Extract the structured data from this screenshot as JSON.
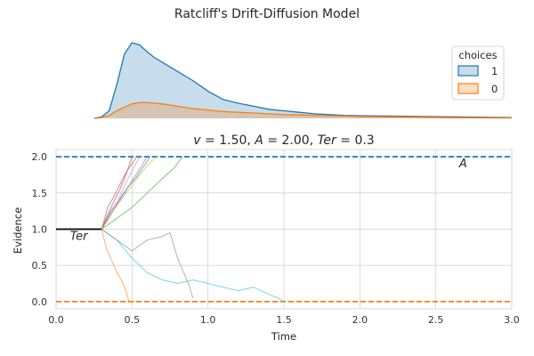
{
  "figure_title": "Ratcliff's Drift-Diffusion Model",
  "colors": {
    "choice_1": "#1f77b4",
    "choice_0": "#ff7f0e",
    "grid": "#d3d3d3",
    "threshold_line": "#000000",
    "trajectory_palette": [
      "#1f77b4",
      "#ff7f0e",
      "#2ca02c",
      "#d62728",
      "#9467bd",
      "#8c564b",
      "#e377c2",
      "#7f7f7f",
      "#bcbd22",
      "#17becf"
    ]
  },
  "chart_data": [
    {
      "type": "area",
      "subtype": "kde",
      "title": "",
      "xlim": [
        0.0,
        3.0
      ],
      "legend": {
        "title": "choices",
        "placement": "top-right",
        "entries": [
          {
            "label": "1",
            "color": "#1f77b4"
          },
          {
            "label": "0",
            "color": "#ff7f0e"
          }
        ]
      },
      "x": [
        0.25,
        0.3,
        0.35,
        0.4,
        0.45,
        0.5,
        0.55,
        0.6,
        0.65,
        0.7,
        0.8,
        0.9,
        1.0,
        1.1,
        1.2,
        1.3,
        1.4,
        1.5,
        1.6,
        1.7,
        1.8,
        1.9,
        2.0,
        2.2,
        2.4,
        2.6,
        2.8,
        3.0
      ],
      "series": [
        {
          "name": "1",
          "color": "#1f77b4",
          "values": [
            0.0,
            0.02,
            0.1,
            0.45,
            0.85,
            1.0,
            0.97,
            0.88,
            0.8,
            0.74,
            0.62,
            0.5,
            0.36,
            0.25,
            0.2,
            0.16,
            0.12,
            0.1,
            0.08,
            0.06,
            0.05,
            0.04,
            0.035,
            0.03,
            0.025,
            0.02,
            0.015,
            0.01
          ]
        },
        {
          "name": "0",
          "color": "#ff7f0e",
          "values": [
            0.0,
            0.01,
            0.04,
            0.1,
            0.15,
            0.19,
            0.21,
            0.21,
            0.2,
            0.19,
            0.16,
            0.13,
            0.11,
            0.09,
            0.08,
            0.07,
            0.06,
            0.05,
            0.045,
            0.04,
            0.035,
            0.03,
            0.025,
            0.02,
            0.015,
            0.01,
            0.008,
            0.005
          ]
        }
      ]
    },
    {
      "type": "line",
      "title": "v = 1.50, A = 2.00, Ter = 0.3",
      "title_parts": {
        "v": "v",
        "v_val": "1.50",
        "A": "A",
        "A_val": "2.00",
        "Ter": "Ter",
        "Ter_val": "0.3"
      },
      "xlabel": "Time",
      "ylabel": "Evidence",
      "xlim": [
        0.0,
        3.0
      ],
      "ylim": [
        -0.1,
        2.1
      ],
      "xticks": [
        0.0,
        0.5,
        1.0,
        1.5,
        2.0,
        2.5,
        3.0
      ],
      "xtick_labels": [
        "0.0",
        "0.5",
        "1.0",
        "1.5",
        "2.0",
        "2.5",
        "3.0"
      ],
      "yticks": [
        0.0,
        0.5,
        1.0,
        1.5,
        2.0
      ],
      "ytick_labels": [
        "0.0",
        "0.5",
        "1.0",
        "1.5",
        "2.0"
      ],
      "grid": true,
      "upper_boundary": {
        "y": 2.0,
        "label": "A",
        "style": "dashed",
        "color": "#1f77b4"
      },
      "lower_boundary": {
        "y": 0.0,
        "style": "dashed",
        "color": "#ff7f0e"
      },
      "non_decision_segment": {
        "x": [
          0.0,
          0.3
        ],
        "y": 1.0,
        "label": "Ter",
        "color": "#000000"
      },
      "trajectories": [
        {
          "color": "#1f77b4",
          "x": [
            0.3,
            0.36,
            0.42,
            0.48,
            0.53,
            0.58,
            0.62
          ],
          "y": [
            1.0,
            1.25,
            1.42,
            1.6,
            1.72,
            1.88,
            2.0
          ]
        },
        {
          "color": "#ff7f0e",
          "x": [
            0.3,
            0.33,
            0.37,
            0.4,
            0.43,
            0.46,
            0.48
          ],
          "y": [
            1.0,
            0.75,
            0.55,
            0.4,
            0.3,
            0.15,
            0.0
          ]
        },
        {
          "color": "#2ca02c",
          "x": [
            0.3,
            0.4,
            0.5,
            0.6,
            0.7,
            0.78,
            0.83
          ],
          "y": [
            1.0,
            1.15,
            1.3,
            1.5,
            1.7,
            1.85,
            2.0
          ]
        },
        {
          "color": "#d62728",
          "x": [
            0.3,
            0.34,
            0.38,
            0.42,
            0.46,
            0.5
          ],
          "y": [
            1.0,
            1.2,
            1.38,
            1.55,
            1.75,
            2.0
          ]
        },
        {
          "color": "#9467bd",
          "x": [
            0.3,
            0.36,
            0.42,
            0.48,
            0.54,
            0.6
          ],
          "y": [
            1.0,
            1.22,
            1.4,
            1.6,
            1.8,
            2.0
          ]
        },
        {
          "color": "#8c564b",
          "x": [
            0.3,
            0.34,
            0.38,
            0.42,
            0.46,
            0.5,
            0.53
          ],
          "y": [
            1.0,
            1.3,
            1.45,
            1.62,
            1.78,
            1.9,
            2.0
          ]
        },
        {
          "color": "#e377c2",
          "x": [
            0.3,
            0.35,
            0.4,
            0.45,
            0.5,
            0.55
          ],
          "y": [
            1.0,
            1.15,
            1.35,
            1.6,
            1.8,
            2.0
          ]
        },
        {
          "color": "#7f7f7f",
          "x": [
            0.3,
            0.4,
            0.5,
            0.6,
            0.7,
            0.75,
            0.8,
            0.85,
            0.88,
            0.9
          ],
          "y": [
            1.0,
            0.85,
            0.7,
            0.85,
            0.9,
            0.95,
            0.6,
            0.35,
            0.2,
            0.05
          ]
        },
        {
          "color": "#bcbd22",
          "x": [
            0.3,
            0.36,
            0.42,
            0.48,
            0.54,
            0.6,
            0.66
          ],
          "y": [
            1.0,
            1.2,
            1.38,
            1.55,
            1.72,
            1.88,
            2.0
          ]
        },
        {
          "color": "#17becf",
          "x": [
            0.3,
            0.4,
            0.5,
            0.6,
            0.7,
            0.8,
            0.9,
            1.0,
            1.1,
            1.2,
            1.3,
            1.4,
            1.46,
            1.5
          ],
          "y": [
            1.0,
            0.85,
            0.6,
            0.4,
            0.3,
            0.25,
            0.3,
            0.25,
            0.2,
            0.15,
            0.2,
            0.1,
            0.05,
            0.0
          ]
        }
      ]
    }
  ]
}
